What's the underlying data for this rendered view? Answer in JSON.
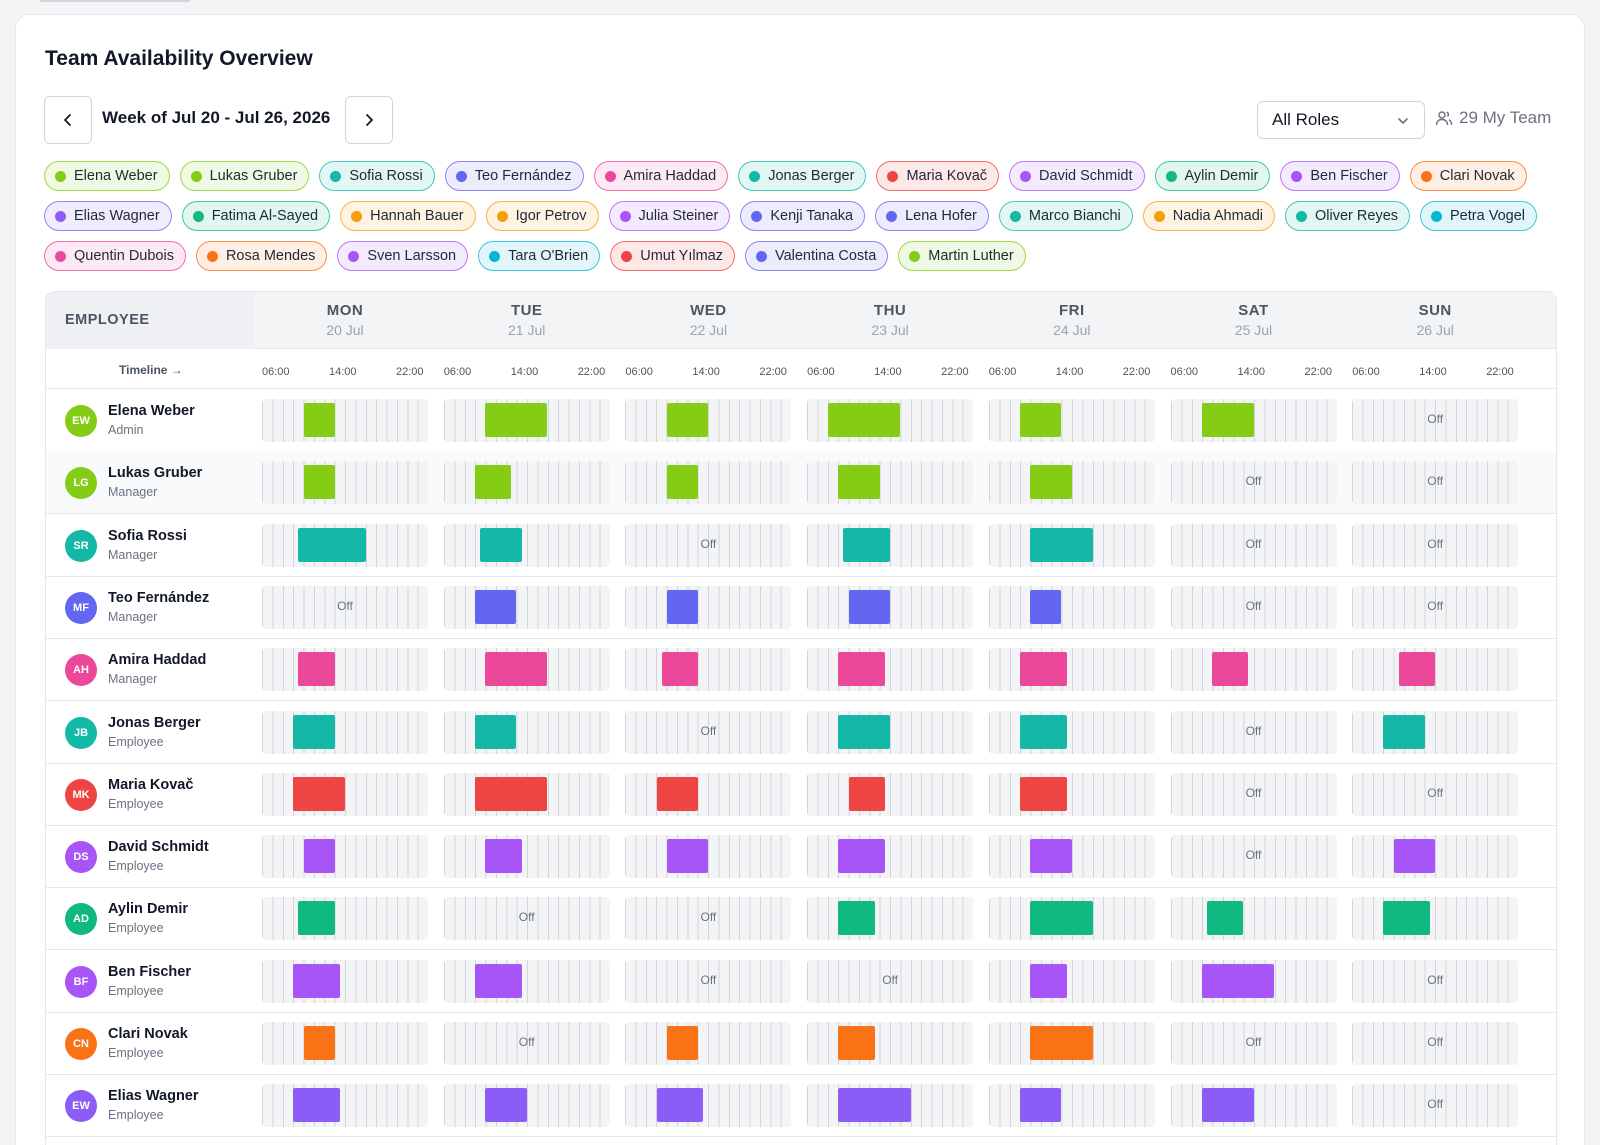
{
  "title": "Team Availability Overview",
  "week_label": "Week of Jul 20 - Jul 26, 2026",
  "role_filter": {
    "selected": "All Roles"
  },
  "team_count": "29 My Team",
  "colors": {
    "lime": "#84cc16",
    "teal": "#14b8a6",
    "indigo": "#6366f1",
    "pink": "#ec4899",
    "red": "#ef4444",
    "purple": "#a855f7",
    "emerald": "#10b981",
    "orange": "#f97316",
    "violet": "#8b5cf6",
    "cyan": "#06b6d4",
    "amber": "#f59e0b",
    "blue": "#3b82f6"
  },
  "chips": [
    {
      "label": "Elena Weber",
      "color": "lime"
    },
    {
      "label": "Lukas Gruber",
      "color": "lime"
    },
    {
      "label": "Sofia Rossi",
      "color": "teal"
    },
    {
      "label": "Teo Fernández",
      "color": "indigo"
    },
    {
      "label": "Amira Haddad",
      "color": "pink"
    },
    {
      "label": "Jonas Berger",
      "color": "teal"
    },
    {
      "label": "Maria Kovač",
      "color": "red"
    },
    {
      "label": "David Schmidt",
      "color": "purple"
    },
    {
      "label": "Aylin Demir",
      "color": "emerald"
    },
    {
      "label": "Ben Fischer",
      "color": "purple"
    },
    {
      "label": "Clari Novak",
      "color": "orange"
    },
    {
      "label": "Elias Wagner",
      "color": "violet"
    },
    {
      "label": "Fatima Al-Sayed",
      "color": "emerald"
    },
    {
      "label": "Hannah Bauer",
      "color": "amber"
    },
    {
      "label": "Igor Petrov",
      "color": "amber"
    },
    {
      "label": "Julia Steiner",
      "color": "purple"
    },
    {
      "label": "Kenji Tanaka",
      "color": "indigo"
    },
    {
      "label": "Lena Hofer",
      "color": "indigo"
    },
    {
      "label": "Marco Bianchi",
      "color": "teal"
    },
    {
      "label": "Nadia Ahmadi",
      "color": "amber"
    },
    {
      "label": "Oliver Reyes",
      "color": "teal"
    },
    {
      "label": "Petra Vogel",
      "color": "cyan"
    },
    {
      "label": "Quentin Dubois",
      "color": "pink"
    },
    {
      "label": "Rosa Mendes",
      "color": "orange"
    },
    {
      "label": "Sven Larsson",
      "color": "purple"
    },
    {
      "label": "Tara O'Brien",
      "color": "cyan"
    },
    {
      "label": "Umut Yılmaz",
      "color": "red"
    },
    {
      "label": "Valentina Costa",
      "color": "indigo"
    },
    {
      "label": "Martin Luther",
      "color": "lime"
    }
  ],
  "grid": {
    "employee_header": "EMPLOYEE",
    "timeline_label": "Timeline →",
    "ticks": [
      "06:00",
      "14:00",
      "22:00"
    ],
    "off_label": "Off",
    "days": [
      {
        "name": "MON",
        "date": "20 Jul"
      },
      {
        "name": "TUE",
        "date": "21 Jul"
      },
      {
        "name": "WED",
        "date": "22 Jul"
      },
      {
        "name": "THU",
        "date": "23 Jul"
      },
      {
        "name": "FRI",
        "date": "24 Jul"
      },
      {
        "name": "SAT",
        "date": "25 Jul"
      },
      {
        "name": "SUN",
        "date": "26 Jul"
      }
    ],
    "employees": [
      {
        "initials": "EW",
        "name": "Elena Weber",
        "role": "Admin",
        "color": "lime",
        "shifts": [
          [
            8,
            11
          ],
          [
            8,
            14
          ],
          [
            8,
            12
          ],
          [
            6,
            13
          ],
          [
            7,
            11
          ],
          [
            7,
            12
          ],
          null
        ]
      },
      {
        "initials": "LG",
        "name": "Lukas Gruber",
        "role": "Manager",
        "color": "lime",
        "shifts": [
          [
            8,
            11
          ],
          [
            7,
            10.5
          ],
          [
            8,
            11
          ],
          [
            7,
            11
          ],
          [
            8,
            12
          ],
          null,
          null
        ]
      },
      {
        "initials": "SR",
        "name": "Sofia Rossi",
        "role": "Manager",
        "color": "teal",
        "shifts": [
          [
            7.5,
            14
          ],
          [
            7.5,
            11.5
          ],
          null,
          [
            7.5,
            12
          ],
          [
            8,
            14
          ],
          null,
          null
        ]
      },
      {
        "initials": "MF",
        "name": "Teo Fernández",
        "role": "Manager",
        "color": "indigo",
        "shifts": [
          null,
          [
            7,
            11
          ],
          [
            8,
            11
          ],
          [
            8,
            12
          ],
          [
            8,
            11
          ],
          null,
          null
        ]
      },
      {
        "initials": "AH",
        "name": "Amira Haddad",
        "role": "Manager",
        "color": "pink",
        "shifts": [
          [
            7.5,
            11
          ],
          [
            8,
            14
          ],
          [
            7.5,
            11
          ],
          [
            7,
            11.5
          ],
          [
            7,
            11.5
          ],
          [
            8,
            11.5
          ],
          [
            8.5,
            12
          ]
        ]
      },
      {
        "initials": "JB",
        "name": "Jonas Berger",
        "role": "Employee",
        "color": "teal",
        "shifts": [
          [
            7,
            11
          ],
          [
            7,
            11
          ],
          null,
          [
            7,
            12
          ],
          [
            7,
            11.5
          ],
          null,
          [
            7,
            11
          ]
        ]
      },
      {
        "initials": "MK",
        "name": "Maria Kovač",
        "role": "Employee",
        "color": "red",
        "shifts": [
          [
            7,
            12
          ],
          [
            7,
            14
          ],
          [
            7,
            11
          ],
          [
            8,
            11.5
          ],
          [
            7,
            11.5
          ],
          null,
          null
        ]
      },
      {
        "initials": "DS",
        "name": "David Schmidt",
        "role": "Employee",
        "color": "purple",
        "shifts": [
          [
            8,
            11
          ],
          [
            8,
            11.5
          ],
          [
            8,
            12
          ],
          [
            7,
            11.5
          ],
          [
            8,
            12
          ],
          null,
          [
            8,
            12
          ]
        ]
      },
      {
        "initials": "AD",
        "name": "Aylin Demir",
        "role": "Employee",
        "color": "emerald",
        "shifts": [
          [
            7.5,
            11
          ],
          null,
          null,
          [
            7,
            10.5
          ],
          [
            8,
            14
          ],
          [
            7.5,
            11
          ],
          [
            7,
            11.5
          ]
        ]
      },
      {
        "initials": "BF",
        "name": "Ben Fischer",
        "role": "Employee",
        "color": "purple",
        "shifts": [
          [
            7,
            11.5
          ],
          [
            7,
            11.5
          ],
          null,
          null,
          [
            8,
            11.5
          ],
          [
            7,
            14
          ],
          null
        ]
      },
      {
        "initials": "CN",
        "name": "Clari Novak",
        "role": "Employee",
        "color": "orange",
        "shifts": [
          [
            8,
            11
          ],
          null,
          [
            8,
            11
          ],
          [
            7,
            10.5
          ],
          [
            8,
            14
          ],
          null,
          null
        ]
      },
      {
        "initials": "EW",
        "name": "Elias Wagner",
        "role": "Employee",
        "color": "violet",
        "shifts": [
          [
            7,
            11.5
          ],
          [
            8,
            12
          ],
          [
            7,
            11.5
          ],
          [
            7,
            14
          ],
          [
            7,
            11
          ],
          [
            7,
            12
          ],
          null
        ]
      }
    ]
  }
}
